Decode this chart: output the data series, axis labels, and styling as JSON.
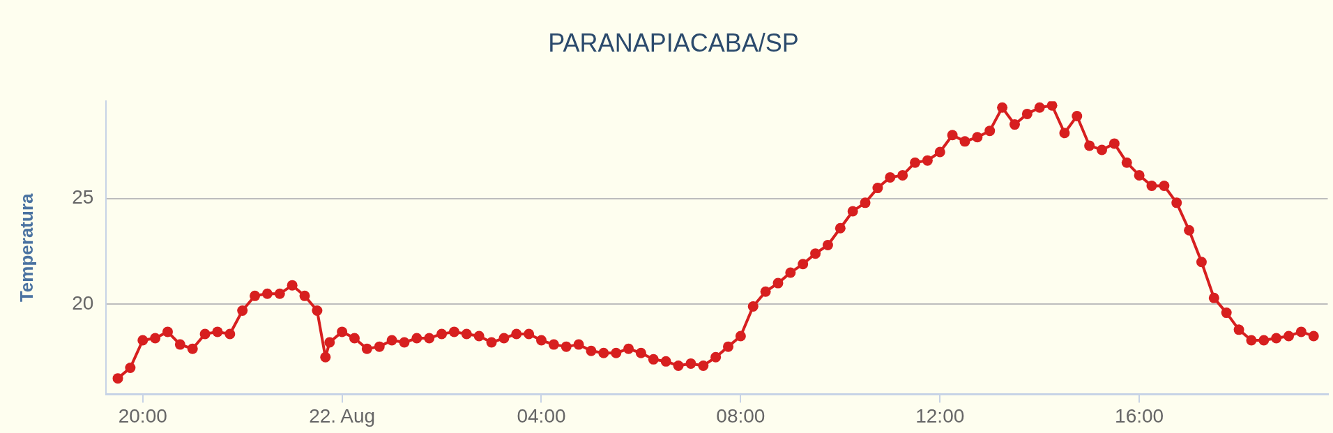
{
  "chart_data": {
    "type": "line",
    "title": "PARANAPIACABA/SP",
    "ylabel": "Temperatura",
    "x": [
      "--08-21T19:30",
      "--08-21T19:45",
      "--08-21T20:00",
      "--08-21T20:15",
      "--08-21T20:30",
      "--08-21T20:45",
      "--08-21T21:00",
      "--08-21T21:15",
      "--08-21T21:30",
      "--08-21T21:45",
      "--08-21T22:00",
      "--08-21T22:15",
      "--08-21T22:30",
      "--08-21T22:45",
      "--08-21T23:00",
      "--08-21T23:15",
      "--08-21T23:30",
      "--08-21T23:40",
      "--08-21T23:45",
      "--08-22T00:00",
      "--08-22T00:15",
      "--08-22T00:30",
      "--08-22T00:45",
      "--08-22T01:00",
      "--08-22T01:15",
      "--08-22T01:30",
      "--08-22T01:45",
      "--08-22T02:00",
      "--08-22T02:15",
      "--08-22T02:30",
      "--08-22T02:45",
      "--08-22T03:00",
      "--08-22T03:15",
      "--08-22T03:30",
      "--08-22T03:45",
      "--08-22T04:00",
      "--08-22T04:15",
      "--08-22T04:30",
      "--08-22T04:45",
      "--08-22T05:00",
      "--08-22T05:15",
      "--08-22T05:30",
      "--08-22T05:45",
      "--08-22T06:00",
      "--08-22T06:15",
      "--08-22T06:30",
      "--08-22T06:45",
      "--08-22T07:00",
      "--08-22T07:15",
      "--08-22T07:30",
      "--08-22T07:45",
      "--08-22T08:00",
      "--08-22T08:15",
      "--08-22T08:30",
      "--08-22T08:45",
      "--08-22T09:00",
      "--08-22T09:15",
      "--08-22T09:30",
      "--08-22T09:45",
      "--08-22T10:00",
      "--08-22T10:15",
      "--08-22T10:30",
      "--08-22T10:45",
      "--08-22T11:00",
      "--08-22T11:15",
      "--08-22T11:30",
      "--08-22T11:45",
      "--08-22T12:00",
      "--08-22T12:15",
      "--08-22T12:30",
      "--08-22T12:45",
      "--08-22T13:00",
      "--08-22T13:15",
      "--08-22T13:30",
      "--08-22T13:45",
      "--08-22T14:00",
      "--08-22T14:15",
      "--08-22T14:30",
      "--08-22T14:45",
      "--08-22T15:00",
      "--08-22T15:15",
      "--08-22T15:30",
      "--08-22T15:45",
      "--08-22T16:00",
      "--08-22T16:15",
      "--08-22T16:30",
      "--08-22T16:45",
      "--08-22T17:00",
      "--08-22T17:15",
      "--08-22T17:30",
      "--08-22T17:45",
      "--08-22T18:00",
      "--08-22T18:15",
      "--08-22T18:30",
      "--08-22T18:45",
      "--08-22T19:00",
      "--08-22T19:15",
      "--08-22T19:30"
    ],
    "series": [
      {
        "color": "#d71f1f",
        "values": [
          16.5,
          17.0,
          18.3,
          18.4,
          18.7,
          18.1,
          17.9,
          18.6,
          18.7,
          18.6,
          19.7,
          20.4,
          20.5,
          20.5,
          20.9,
          20.4,
          19.7,
          17.5,
          18.2,
          18.7,
          18.4,
          17.9,
          18.0,
          18.3,
          18.2,
          18.4,
          18.4,
          18.6,
          18.7,
          18.6,
          18.5,
          18.2,
          18.4,
          18.6,
          18.6,
          18.3,
          18.1,
          18.0,
          18.1,
          17.8,
          17.7,
          17.7,
          17.9,
          17.7,
          17.4,
          17.3,
          17.1,
          17.2,
          17.1,
          17.5,
          18.0,
          18.5,
          19.9,
          20.6,
          21.0,
          21.5,
          21.9,
          22.4,
          22.8,
          23.6,
          24.4,
          24.8,
          25.5,
          26.0,
          26.1,
          26.7,
          26.8,
          27.2,
          28.0,
          27.7,
          27.9,
          28.2,
          29.3,
          28.5,
          29.0,
          29.3,
          29.4,
          28.1,
          28.9,
          27.5,
          27.3,
          27.6,
          26.7,
          26.1,
          25.6,
          25.6,
          24.8,
          23.5,
          22.0,
          20.3,
          19.6,
          18.8,
          18.3,
          18.3,
          18.4,
          18.5,
          18.7,
          18.5
        ]
      }
    ],
    "xlim": [
      "--08-21T19:16",
      "--08-22T19:47"
    ],
    "xticks": [
      {
        "value": "--08-21T20:00",
        "label": "20:00"
      },
      {
        "value": "--08-22T00:00",
        "label": "22. Aug"
      },
      {
        "value": "--08-22T04:00",
        "label": "04:00"
      },
      {
        "value": "--08-22T08:00",
        "label": "08:00"
      },
      {
        "value": "--08-22T12:00",
        "label": "12:00"
      },
      {
        "value": "--08-22T16:00",
        "label": "16:00"
      }
    ],
    "ylim": [
      15.75,
      29.6
    ],
    "yticks": [
      20,
      25
    ],
    "grid": "y",
    "marker": "circle",
    "line_style": "solid"
  }
}
